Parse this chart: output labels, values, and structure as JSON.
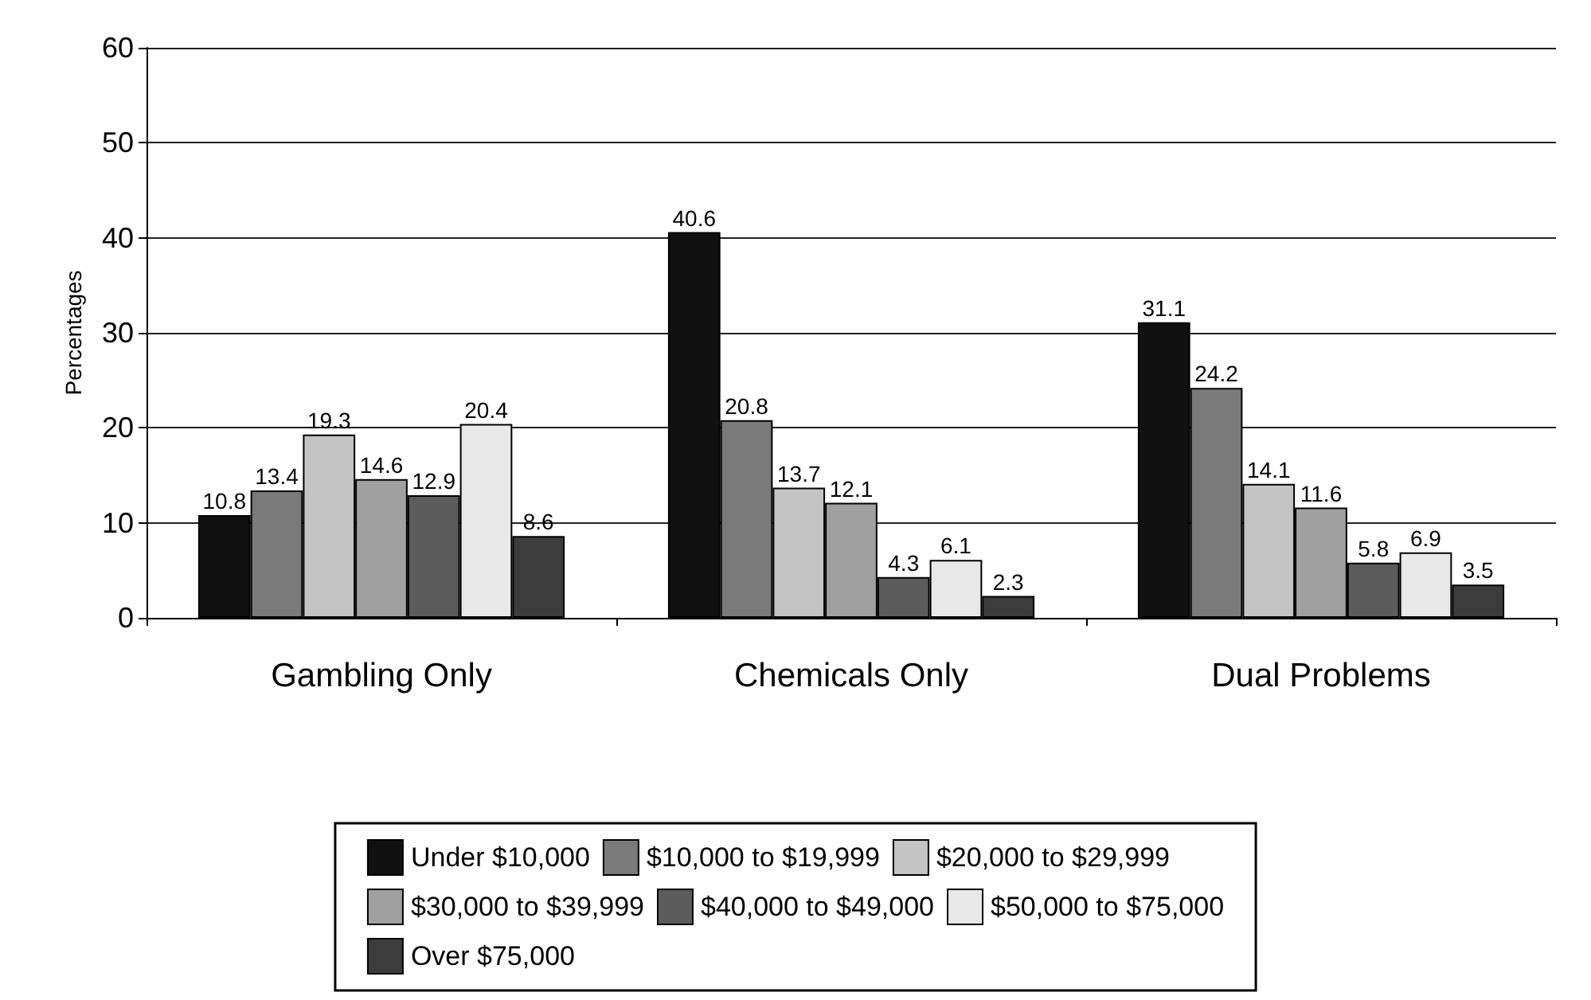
{
  "chart_data": {
    "type": "bar",
    "ylabel": "Percentages",
    "categories": [
      "Gambling Only",
      "Chemicals Only",
      "Dual Problems"
    ],
    "series": [
      {
        "name": "Under $10,000",
        "color": "#111111",
        "values": [
          10.8,
          40.6,
          31.1
        ]
      },
      {
        "name": "$10,000 to $19,999",
        "color": "#7a7a7a",
        "values": [
          13.4,
          20.8,
          24.2
        ]
      },
      {
        "name": "$20,000 to $29,999",
        "color": "#c4c4c4",
        "values": [
          19.3,
          13.7,
          14.1
        ]
      },
      {
        "name": "$30,000 to $39,999",
        "color": "#a0a0a0",
        "values": [
          14.6,
          12.1,
          11.6
        ]
      },
      {
        "name": "$40,000 to $49,000",
        "color": "#5c5c5c",
        "values": [
          12.9,
          4.3,
          5.8
        ]
      },
      {
        "name": "$50,000 to $75,000",
        "color": "#e8e8e8",
        "values": [
          20.4,
          6.1,
          6.9
        ]
      },
      {
        "name": "Over $75,000",
        "color": "#3c3c3c",
        "values": [
          8.6,
          2.3,
          3.5
        ]
      }
    ],
    "ylim": [
      0,
      60
    ],
    "yticks": [
      0,
      10,
      20,
      30,
      40,
      50,
      60
    ],
    "grid": "y",
    "legend": "bottom",
    "data_labels": true
  }
}
